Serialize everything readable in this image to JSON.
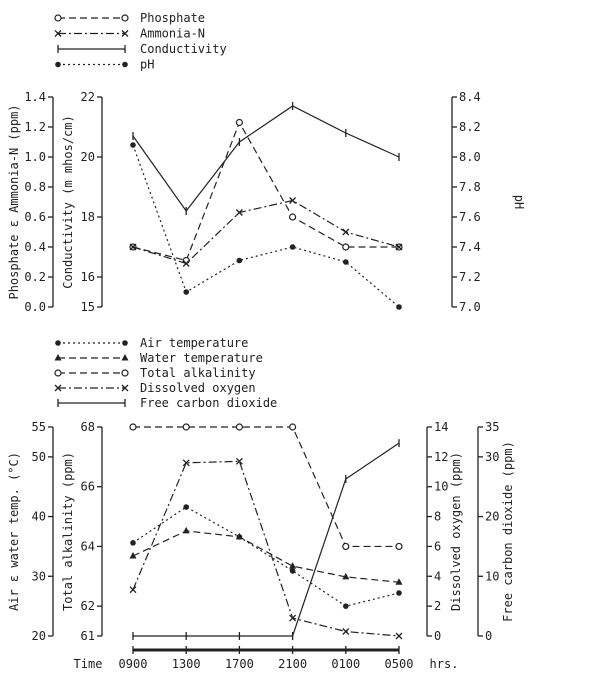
{
  "chart_data": [
    {
      "type": "line",
      "x": [
        "0900",
        "1300",
        "1700",
        "2100",
        "0100",
        "0500"
      ],
      "axes": {
        "left1": {
          "label": "Phosphate ε Ammonia-N (ppm)",
          "range": [
            0.0,
            1.4
          ],
          "ticks": [
            "0.0",
            "0.2",
            "0.4",
            "0.6",
            "0.8",
            "1.0",
            "1.2",
            "1.4"
          ]
        },
        "left2": {
          "label": "Conductivity (m mhos/cm)",
          "range": [
            15,
            22
          ],
          "ticks": [
            "15",
            "16",
            "18",
            "20",
            "22"
          ]
        },
        "right1": {
          "label": "pH",
          "range": [
            7.0,
            8.4
          ],
          "ticks": [
            "7.0",
            "7.2",
            "7.4",
            "7.6",
            "7.8",
            "8.0",
            "8.2",
            "8.4"
          ]
        }
      },
      "series": [
        {
          "name": "Phosphate",
          "axis": "left1",
          "style": "dashed",
          "marker": "open-circle",
          "values": [
            0.4,
            0.31,
            1.23,
            0.6,
            0.4,
            0.4
          ]
        },
        {
          "name": "Ammonia-N",
          "axis": "left1",
          "style": "dash-dot",
          "marker": "x",
          "values": [
            0.4,
            0.29,
            0.63,
            0.71,
            0.5,
            0.4
          ]
        },
        {
          "name": "Conductivity",
          "axis": "left2",
          "style": "solid",
          "marker": "tick",
          "values": [
            20.7,
            18.2,
            20.5,
            21.7,
            20.8,
            20.0
          ]
        },
        {
          "name": "pH",
          "axis": "right1",
          "style": "dotted",
          "marker": "dot",
          "values": [
            8.08,
            7.1,
            7.31,
            7.4,
            7.3,
            7.0
          ]
        }
      ],
      "legend": "top-left",
      "grid": false
    },
    {
      "type": "line",
      "x": [
        "0900",
        "1300",
        "1700",
        "2100",
        "0100",
        "0500"
      ],
      "xlabel": "Time",
      "xunit": "hrs.",
      "axes": {
        "left1": {
          "label": "Air ε water temp. (°C)",
          "range": [
            20,
            55
          ],
          "ticks": [
            "20",
            "30",
            "40",
            "50",
            "55"
          ]
        },
        "left2": {
          "label": "Total alkalinity (ppm)",
          "range": [
            61,
            68
          ],
          "ticks": [
            "61",
            "62",
            "64",
            "66",
            "68"
          ]
        },
        "right1": {
          "label": "Dissolved oxygen (ppm)",
          "range": [
            0,
            14
          ],
          "ticks": [
            "0",
            "2",
            "4",
            "6",
            "8",
            "10",
            "12",
            "14"
          ]
        },
        "right2": {
          "label": "Free carbon dioxide (ppm)",
          "range": [
            0,
            35
          ],
          "ticks": [
            "0",
            "10",
            "20",
            "30",
            "35"
          ]
        }
      },
      "series": [
        {
          "name": "Air temperature",
          "axis": "left1",
          "style": "dotted",
          "marker": "dot",
          "values": [
            35.6,
            41.6,
            36.6,
            30.9,
            25.0,
            27.2
          ]
        },
        {
          "name": "Water temperature",
          "axis": "left1",
          "style": "dashed",
          "marker": "triangle",
          "values": [
            33.4,
            37.6,
            36.6,
            31.7,
            29.9,
            29.0
          ]
        },
        {
          "name": "Total alkalinity",
          "axis": "left2",
          "style": "dashed",
          "marker": "open-circle",
          "values": [
            68,
            68,
            68,
            68,
            64,
            64
          ]
        },
        {
          "name": "Dissolved oxygen",
          "axis": "right1",
          "style": "dash-dot",
          "marker": "x",
          "values": [
            3.1,
            11.6,
            11.7,
            1.2,
            0.3,
            0.0
          ]
        },
        {
          "name": "Free carbon dioxide",
          "axis": "right2",
          "style": "solid",
          "marker": "tick",
          "values": [
            0,
            0,
            0,
            0,
            26.3,
            32.3
          ]
        }
      ],
      "legend": "top-left",
      "grid": false
    }
  ]
}
